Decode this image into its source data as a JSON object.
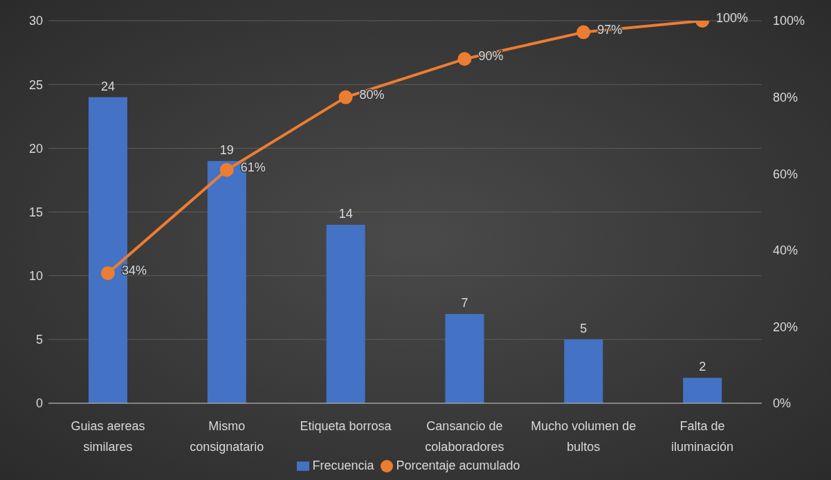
{
  "chart_data": {
    "type": "bar",
    "categories": [
      "Guias aereas similares",
      "Mismo consignatario",
      "Etiqueta borrosa",
      "Cansancio de colaboradores",
      "Mucho volumen de bultos",
      "Falta de iluminación"
    ],
    "series": [
      {
        "name": "Frecuencia",
        "color": "#4472c4",
        "values": [
          24,
          19,
          14,
          7,
          5,
          2
        ],
        "value_labels": [
          "24",
          "19",
          "14",
          "7",
          "5",
          "2"
        ]
      },
      {
        "name": "Porcentaje acumulado",
        "type": "line",
        "axis": "y2",
        "color": "#ed7d31",
        "values": [
          34,
          61,
          80,
          90,
          97,
          100
        ],
        "value_labels": [
          "34%",
          "61%",
          "80%",
          "90%",
          "97%",
          "100%"
        ]
      }
    ],
    "ylim": [
      0,
      30
    ],
    "yticks": [
      0,
      5,
      10,
      15,
      20,
      25,
      30
    ],
    "y2lim": [
      0,
      100
    ],
    "y2ticks": [
      {
        "value": 0,
        "label": "0%"
      },
      {
        "value": 20,
        "label": "20%"
      },
      {
        "value": 40,
        "label": "40%"
      },
      {
        "value": 60,
        "label": "60%"
      },
      {
        "value": 80,
        "label": "80%"
      },
      {
        "value": 100,
        "label": "100%"
      }
    ],
    "grid": "y",
    "legend": "bottom",
    "marker": "circle",
    "line_style": "solid"
  }
}
